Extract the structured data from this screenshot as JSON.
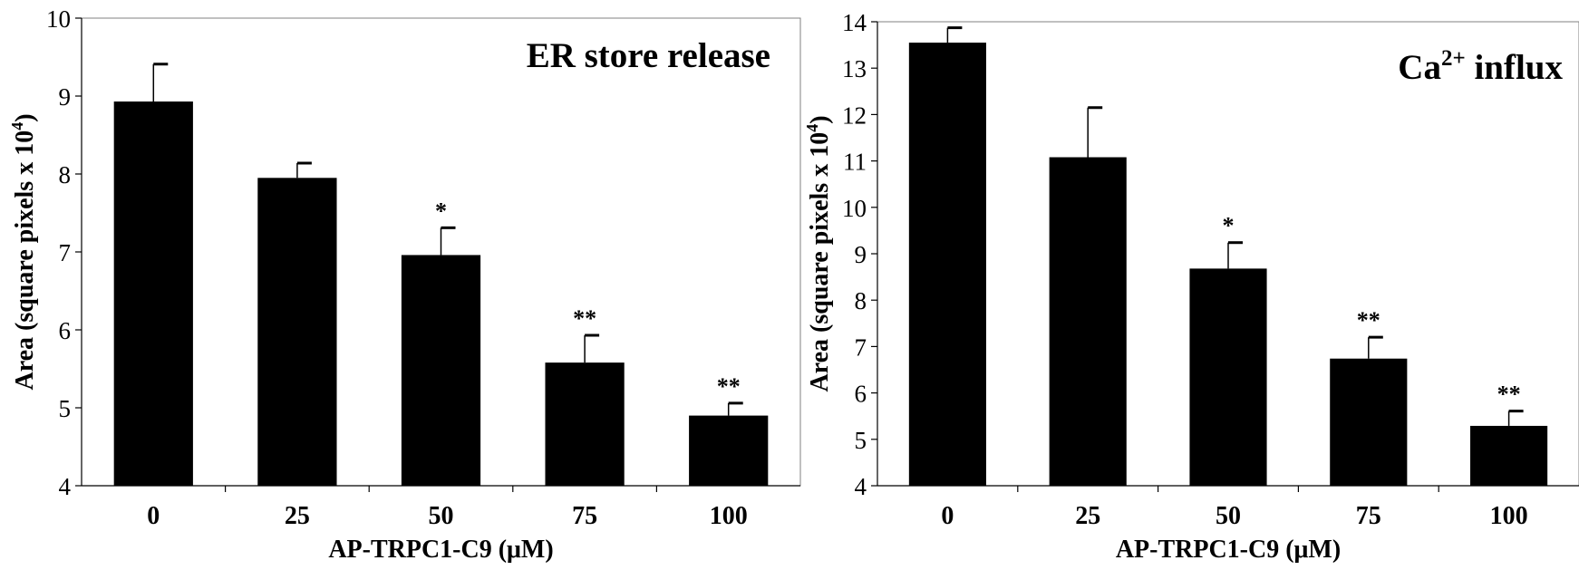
{
  "chart_data": [
    {
      "type": "bar",
      "title": "ER store release",
      "title_suffix": "",
      "title_superscript": "",
      "xlabel": "AP-TRPC1-C9 (μM)",
      "ylabel": "Area (square pixels x 10",
      "ylabel_superscript": "4",
      "ylabel_suffix": ")",
      "categories": [
        "0",
        "25",
        "50",
        "75",
        "100"
      ],
      "values": [
        8.93,
        7.95,
        6.96,
        5.58,
        4.9
      ],
      "error_upper": [
        0.48,
        0.19,
        0.35,
        0.35,
        0.16
      ],
      "significance": [
        "",
        "",
        "*",
        "**",
        "**"
      ],
      "ylim": [
        4,
        10
      ],
      "yticks": [
        4,
        5,
        6,
        7,
        8,
        9,
        10
      ],
      "grid": false,
      "bar_color": "#000000"
    },
    {
      "type": "bar",
      "title": "Ca",
      "title_superscript": "2+",
      "title_suffix": " influx",
      "xlabel": "AP-TRPC1-C9 (μM)",
      "ylabel": "Area (square pixels x 10",
      "ylabel_superscript": "4",
      "ylabel_suffix": ")",
      "categories": [
        "0",
        "25",
        "50",
        "75",
        "100"
      ],
      "values": [
        13.55,
        11.08,
        8.68,
        6.74,
        5.29
      ],
      "error_upper": [
        0.32,
        1.07,
        0.56,
        0.46,
        0.32
      ],
      "significance": [
        "",
        "",
        "*",
        "**",
        "**"
      ],
      "ylim": [
        4,
        14
      ],
      "yticks": [
        4,
        5,
        6,
        7,
        8,
        9,
        10,
        11,
        12,
        13,
        14
      ],
      "grid": false,
      "bar_color": "#000000"
    }
  ]
}
